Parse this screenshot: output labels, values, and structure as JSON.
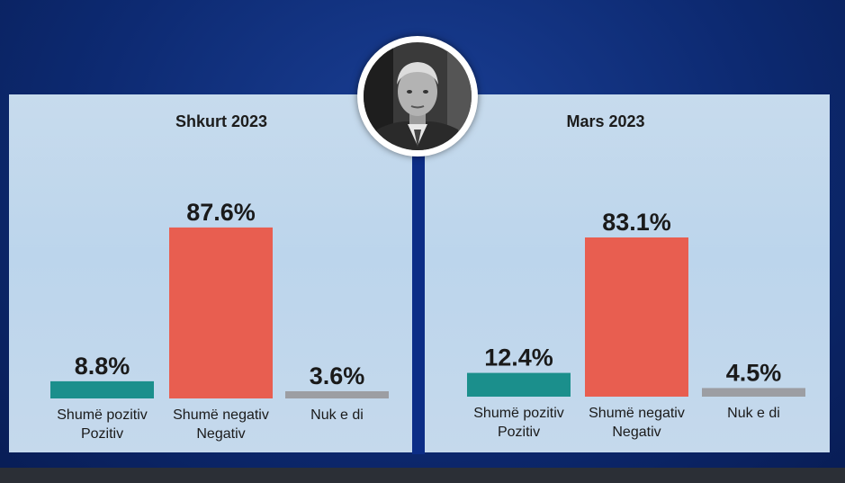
{
  "colors": {
    "positive": "#1b8f8c",
    "negative": "#e85e50",
    "unknown": "#9c9ea3",
    "background": "#0d2a72",
    "panel": "#c2d8ec"
  },
  "portrait_icon": "person-portrait-icon",
  "chart_data": [
    {
      "type": "bar",
      "title": "Shkurt 2023",
      "categories": [
        [
          "Shumë pozitiv",
          "Pozitiv"
        ],
        [
          "Shumë negativ",
          "Negativ"
        ],
        [
          "Nuk e di"
        ]
      ],
      "values": [
        8.8,
        87.6,
        3.6
      ],
      "value_labels": [
        "8.8%",
        "87.6%",
        "3.6%"
      ],
      "bar_colors": [
        "#1b8f8c",
        "#e85e50",
        "#9c9ea3"
      ],
      "ylim": [
        0,
        100
      ],
      "grid": false
    },
    {
      "type": "bar",
      "title": "Mars 2023",
      "categories": [
        [
          "Shumë pozitiv",
          "Pozitiv"
        ],
        [
          "Shumë negativ",
          "Negativ"
        ],
        [
          "Nuk e di"
        ]
      ],
      "values": [
        12.4,
        83.1,
        4.5
      ],
      "value_labels": [
        "12.4%",
        "83.1%",
        "4.5%"
      ],
      "bar_colors": [
        "#1b8f8c",
        "#e85e50",
        "#9c9ea3"
      ],
      "ylim": [
        0,
        100
      ],
      "grid": false
    }
  ]
}
